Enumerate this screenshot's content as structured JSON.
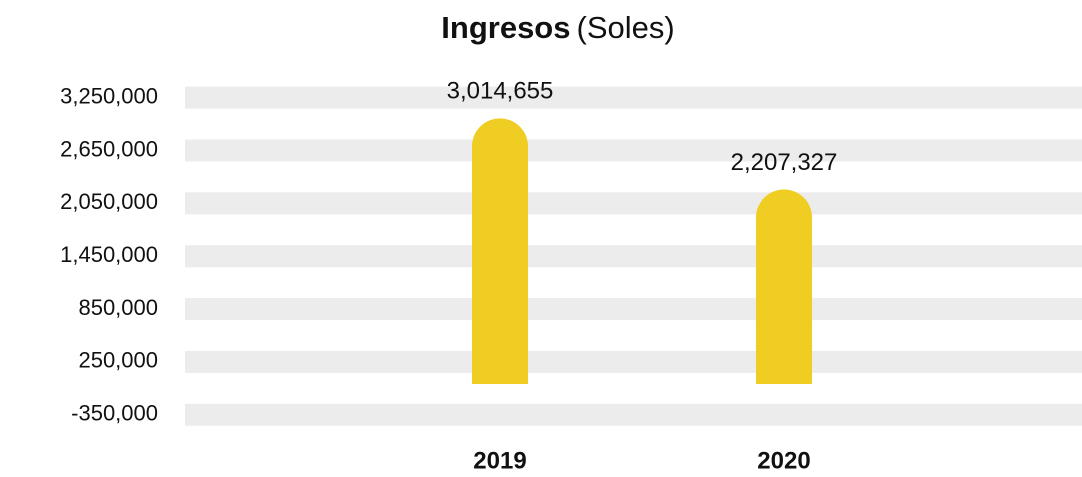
{
  "chart_data": {
    "type": "bar",
    "title": "Ingresos",
    "title_unit": "(Soles)",
    "categories": [
      "2019",
      "2020"
    ],
    "values": [
      3014655,
      2207327
    ],
    "value_labels": [
      "3,014,655",
      "2,207,327"
    ],
    "color": "#f0cd22",
    "category_color": "#8b2a1a",
    "grid": true,
    "grid_color": "#ececec",
    "ylim": [
      -500000,
      3450000
    ],
    "yticks": [
      {
        "value": -350000,
        "label": "-350,000"
      },
      {
        "value": 250000,
        "label": "250,000"
      },
      {
        "value": 850000,
        "label": "850,000"
      },
      {
        "value": 1450000,
        "label": "1,450,000"
      },
      {
        "value": 2050000,
        "label": "2,050,000"
      },
      {
        "value": 2650000,
        "label": "2,650,000"
      },
      {
        "value": 3250000,
        "label": "3,250,000"
      }
    ]
  }
}
